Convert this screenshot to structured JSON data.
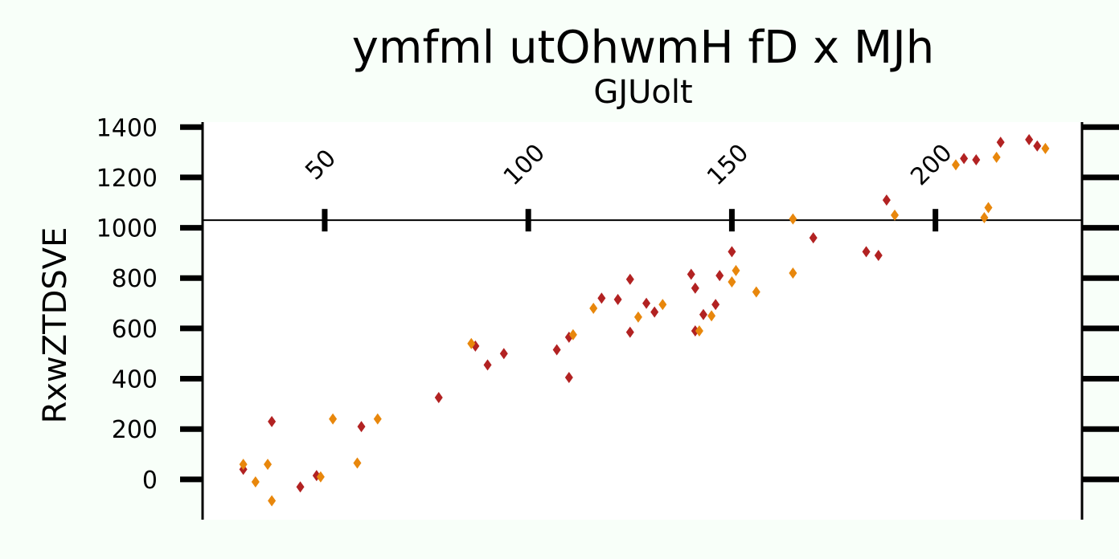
{
  "chart_data": {
    "type": "scatter",
    "title": "ymfml utOhwmH fD x MJh",
    "subtitle": "GJUolt",
    "xlabel": "",
    "ylabel": "RxwZTDSVE",
    "xlim": [
      20,
      236
    ],
    "ylim": [
      -160,
      1420
    ],
    "x_ticks": [
      50,
      100,
      150,
      200
    ],
    "y_ticks": [
      0,
      200,
      400,
      600,
      800,
      1000,
      1200,
      1400
    ],
    "x_axis_at_y": 1030,
    "grid": false,
    "legend": "none",
    "marker": "thin-diamond",
    "series": [
      {
        "color": "#b22222",
        "points": [
          [
            30,
            40
          ],
          [
            37,
            230
          ],
          [
            44,
            -30
          ],
          [
            48,
            15
          ],
          [
            59,
            210
          ],
          [
            78,
            325
          ],
          [
            87,
            530
          ],
          [
            90,
            455
          ],
          [
            94,
            500
          ],
          [
            107,
            515
          ],
          [
            110,
            565
          ],
          [
            110,
            405
          ],
          [
            118,
            720
          ],
          [
            122,
            715
          ],
          [
            125,
            585
          ],
          [
            125,
            795
          ],
          [
            129,
            700
          ],
          [
            131,
            665
          ],
          [
            140,
            815
          ],
          [
            141,
            590
          ],
          [
            141,
            760
          ],
          [
            143,
            655
          ],
          [
            146,
            695
          ],
          [
            147,
            810
          ],
          [
            150,
            905
          ],
          [
            170,
            960
          ],
          [
            183,
            905
          ],
          [
            186,
            890
          ],
          [
            188,
            1110
          ],
          [
            207,
            1275
          ],
          [
            210,
            1270
          ],
          [
            216,
            1340
          ],
          [
            223,
            1350
          ],
          [
            225,
            1325
          ]
        ]
      },
      {
        "color": "#e8870c",
        "points": [
          [
            30,
            60
          ],
          [
            33,
            -10
          ],
          [
            36,
            60
          ],
          [
            37,
            -85
          ],
          [
            49,
            10
          ],
          [
            52,
            240
          ],
          [
            58,
            65
          ],
          [
            63,
            240
          ],
          [
            86,
            540
          ],
          [
            111,
            575
          ],
          [
            116,
            680
          ],
          [
            127,
            645
          ],
          [
            133,
            695
          ],
          [
            142,
            590
          ],
          [
            145,
            650
          ],
          [
            150,
            785
          ],
          [
            151,
            830
          ],
          [
            156,
            745
          ],
          [
            165,
            1035
          ],
          [
            165,
            820
          ],
          [
            190,
            1050
          ],
          [
            205,
            1250
          ],
          [
            212,
            1040
          ],
          [
            213,
            1080
          ],
          [
            215,
            1280
          ],
          [
            227,
            1315
          ]
        ]
      }
    ]
  }
}
